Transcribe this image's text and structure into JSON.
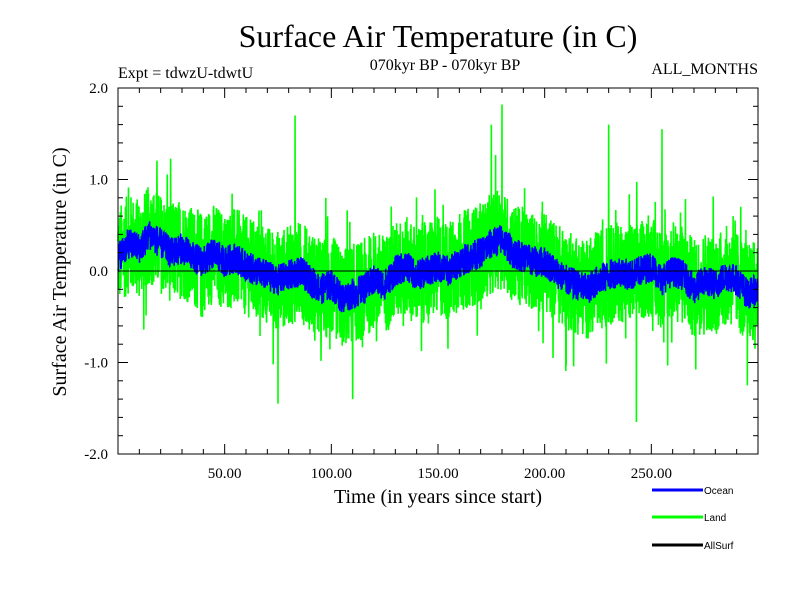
{
  "header": {
    "title": "Surface Air Temperature (in C)",
    "expt": "Expt = tdwzU-tdwtU",
    "period": "070kyr BP - 070kyr BP",
    "months": "ALL_MONTHS"
  },
  "chart_data": {
    "type": "line",
    "title": "Surface Air Temperature (in C)",
    "xlabel": "Time (in years since start)",
    "ylabel": "Surface Air Temperature (in C)",
    "xlim": [
      0,
      300
    ],
    "ylim": [
      -2.0,
      2.0
    ],
    "x_ticks": [
      50,
      100,
      150,
      200,
      250
    ],
    "x_tick_labels": [
      "50.00",
      "100.00",
      "150.00",
      "200.00",
      "250.00"
    ],
    "y_ticks": [
      -2.0,
      -1.0,
      0.0,
      1.0,
      2.0
    ],
    "y_tick_labels": [
      "-2.0",
      "-1.0",
      "0.0",
      "1.0",
      "2.0"
    ],
    "zero_line": true,
    "grid": false,
    "legend_position": "bottom-right, below plot",
    "series": [
      {
        "name": "Ocean",
        "color": "#0000ff",
        "x": [
          0,
          5,
          10,
          15,
          20,
          25,
          30,
          35,
          40,
          45,
          50,
          55,
          60,
          65,
          70,
          75,
          80,
          85,
          90,
          95,
          100,
          105,
          110,
          115,
          120,
          125,
          130,
          135,
          140,
          145,
          150,
          155,
          160,
          165,
          170,
          175,
          180,
          185,
          190,
          195,
          200,
          205,
          210,
          215,
          220,
          225,
          230,
          235,
          240,
          245,
          250,
          255,
          260,
          265,
          270,
          275,
          280,
          285,
          290,
          295,
          300
        ],
        "values": [
          0.15,
          0.3,
          0.25,
          0.4,
          0.3,
          0.2,
          0.25,
          0.15,
          0.1,
          0.2,
          0.1,
          0.15,
          0.05,
          0.0,
          -0.05,
          -0.1,
          -0.05,
          0.0,
          -0.1,
          -0.2,
          -0.15,
          -0.3,
          -0.25,
          -0.2,
          -0.1,
          -0.15,
          0.0,
          0.05,
          -0.05,
          0.0,
          0.05,
          0.0,
          0.1,
          0.15,
          0.2,
          0.3,
          0.35,
          0.2,
          0.15,
          0.1,
          0.1,
          0.0,
          -0.1,
          -0.15,
          -0.2,
          -0.1,
          -0.05,
          0.0,
          -0.05,
          0.0,
          0.05,
          -0.1,
          0.0,
          -0.05,
          -0.2,
          -0.1,
          -0.15,
          -0.05,
          -0.1,
          -0.25,
          -0.2
        ]
      },
      {
        "name": "Land",
        "color": "#00ff00",
        "x": [
          0,
          5,
          10,
          15,
          20,
          25,
          30,
          35,
          40,
          45,
          50,
          55,
          60,
          65,
          70,
          75,
          80,
          85,
          90,
          95,
          100,
          105,
          110,
          115,
          120,
          125,
          130,
          135,
          140,
          145,
          150,
          155,
          160,
          165,
          170,
          175,
          180,
          185,
          190,
          195,
          200,
          205,
          210,
          215,
          220,
          225,
          230,
          235,
          240,
          245,
          250,
          255,
          260,
          265,
          270,
          275,
          280,
          285,
          290,
          295,
          300
        ],
        "values": [
          0.15,
          0.3,
          0.25,
          0.4,
          0.3,
          0.2,
          0.25,
          0.15,
          0.1,
          0.2,
          0.1,
          0.15,
          0.05,
          0.0,
          -0.05,
          -0.1,
          -0.05,
          0.0,
          -0.1,
          -0.2,
          -0.15,
          -0.3,
          -0.25,
          -0.2,
          -0.1,
          -0.15,
          0.0,
          0.05,
          -0.05,
          0.0,
          0.05,
          0.0,
          0.1,
          0.15,
          0.2,
          0.3,
          0.35,
          0.2,
          0.15,
          0.1,
          0.1,
          0.0,
          -0.1,
          -0.15,
          -0.2,
          -0.1,
          -0.05,
          0.0,
          -0.05,
          0.0,
          0.05,
          -0.1,
          0.0,
          -0.05,
          -0.2,
          -0.1,
          -0.15,
          -0.05,
          -0.1,
          -0.25,
          -0.2
        ],
        "amplitude": 0.55,
        "peaks": [
          {
            "x": 83,
            "y": 1.7
          },
          {
            "x": 180,
            "y": 1.82
          },
          {
            "x": 175,
            "y": 1.6
          },
          {
            "x": 230,
            "y": 1.6
          },
          {
            "x": 255,
            "y": 1.55
          },
          {
            "x": 75,
            "y": -1.45
          },
          {
            "x": 110,
            "y": -1.4
          },
          {
            "x": 243,
            "y": -1.65
          },
          {
            "x": 295,
            "y": -1.25
          }
        ]
      },
      {
        "name": "AllSurf",
        "color": "#000000",
        "x": [],
        "values": []
      }
    ]
  }
}
